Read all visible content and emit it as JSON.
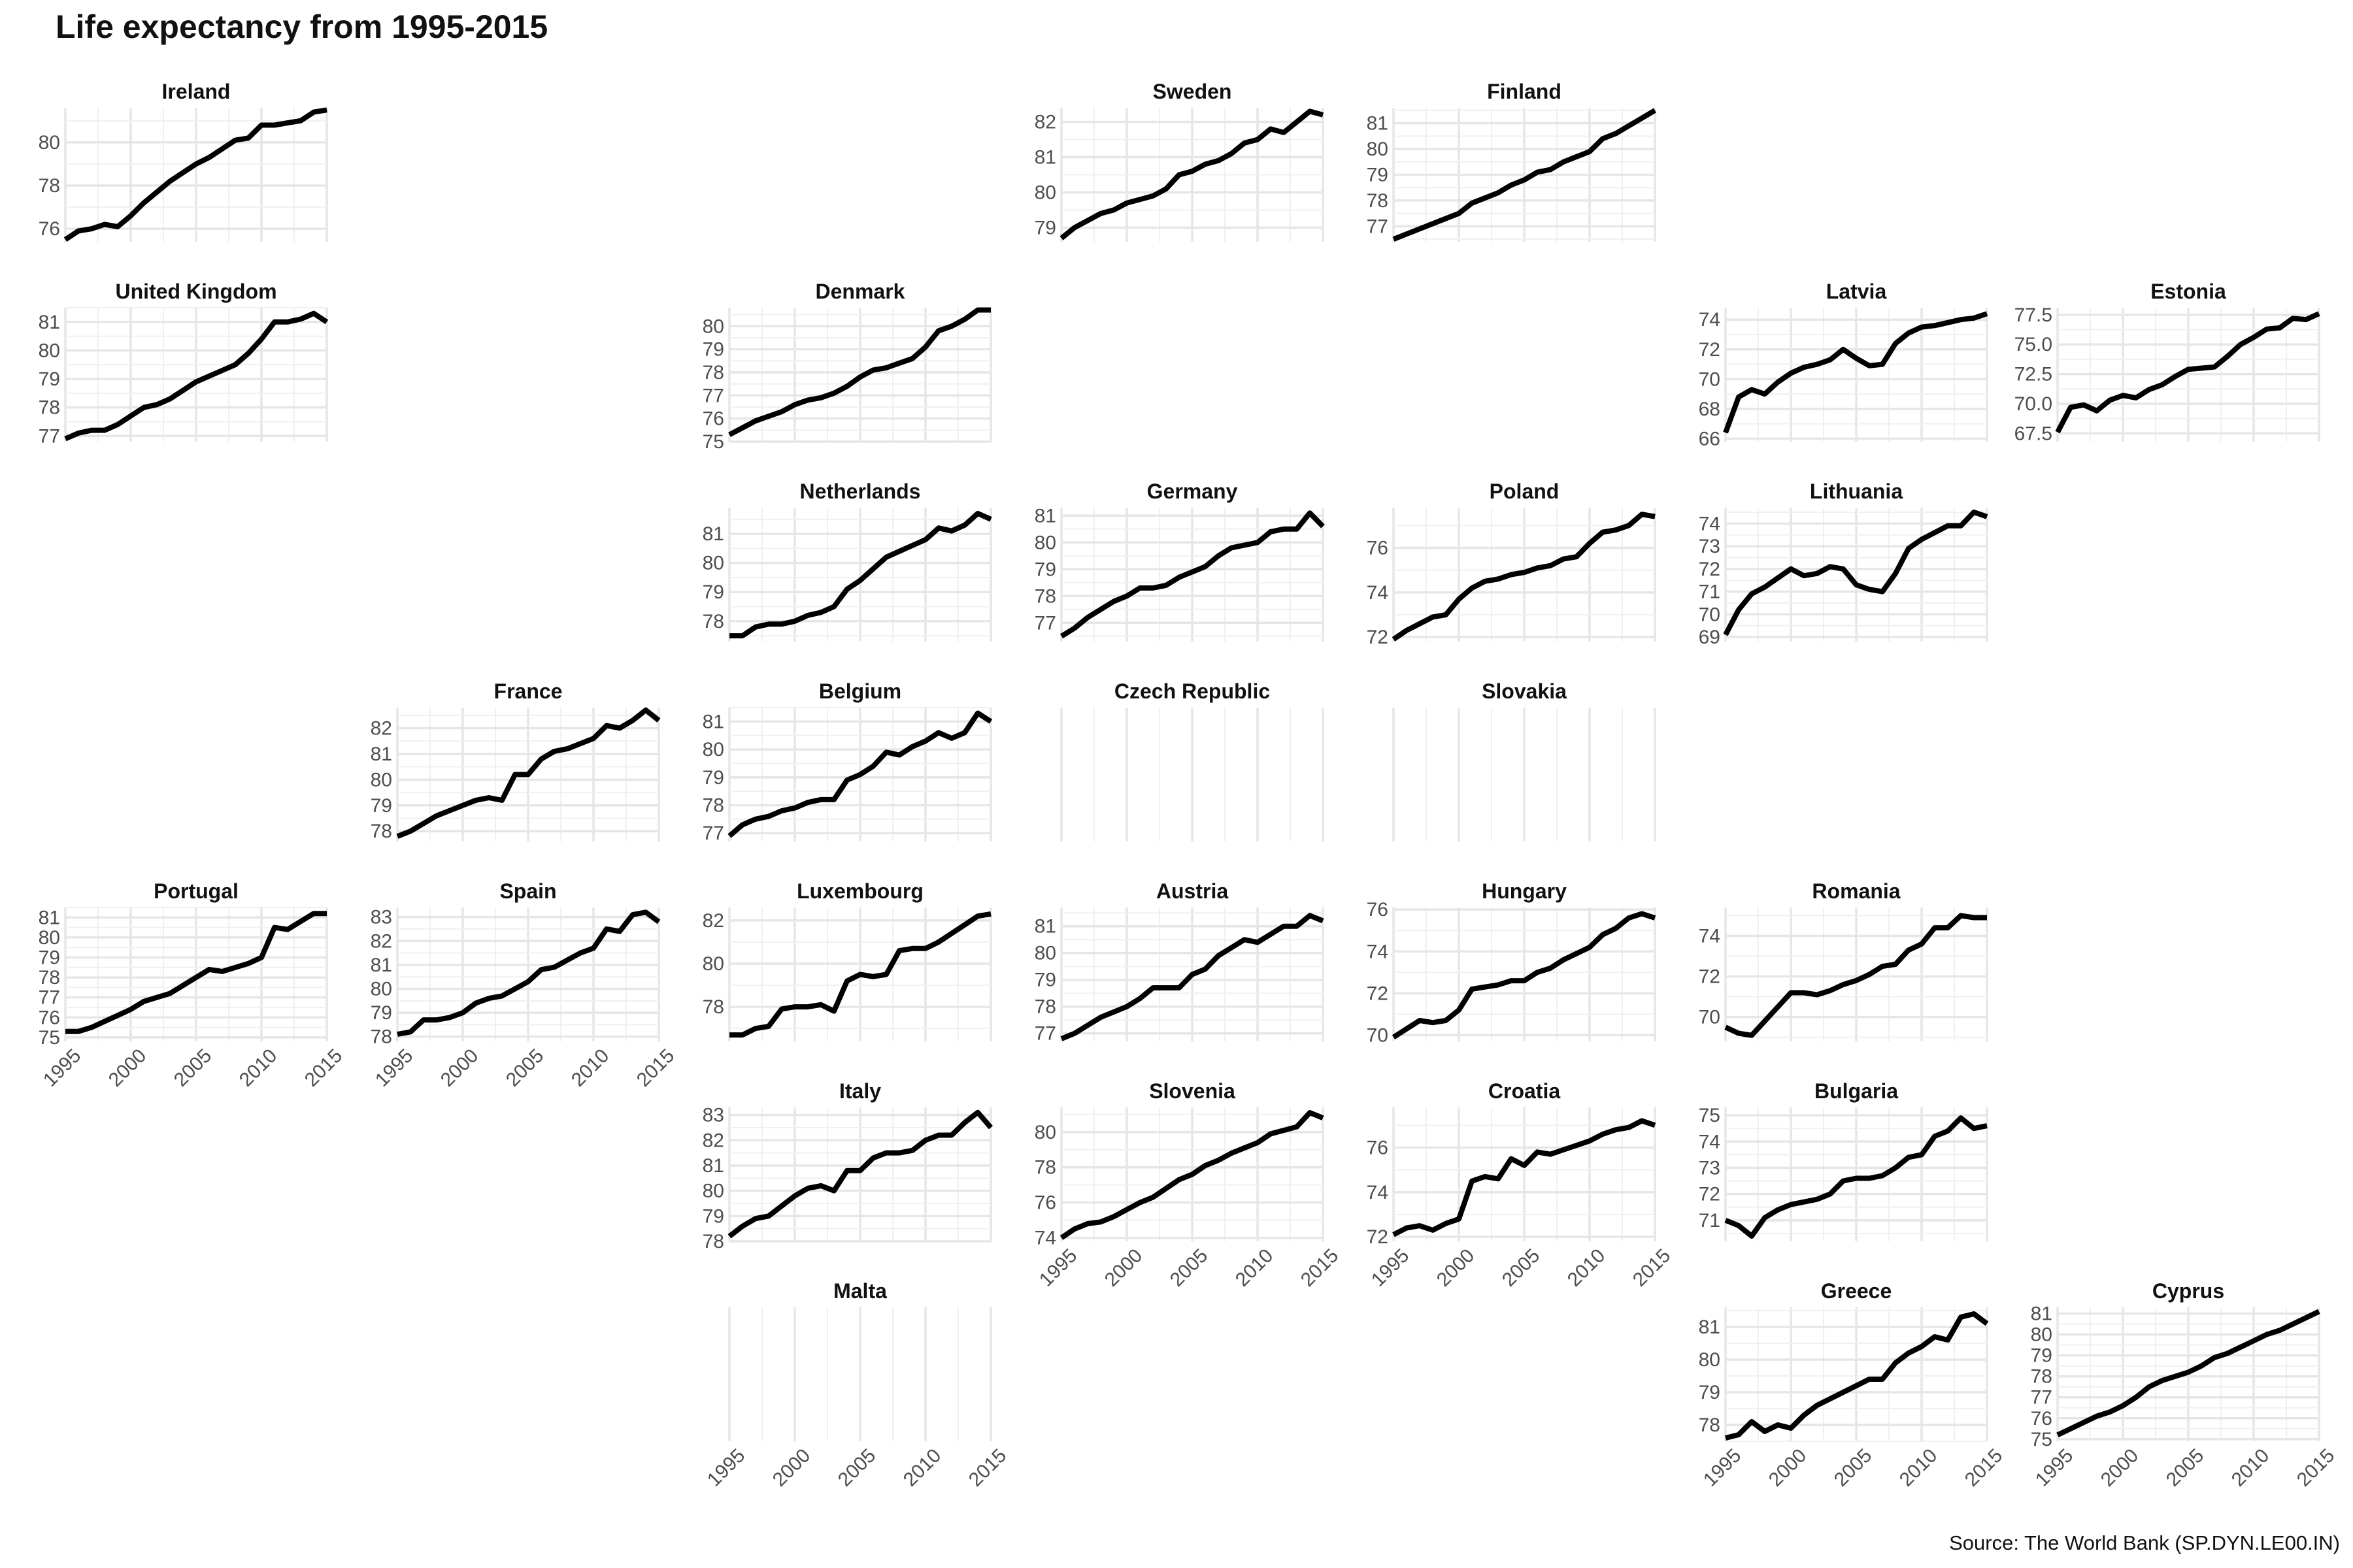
{
  "title": "Life expectancy from 1995-2015",
  "source": "Source: The World Bank (SP.DYN.LE00.IN)",
  "chart_data": {
    "type": "line",
    "layout": "facet-grid",
    "grid": true,
    "xlim": [
      1995,
      2015
    ],
    "x_ticks": [
      1995,
      2000,
      2005,
      2010,
      2015
    ],
    "x": [
      1995,
      1996,
      1997,
      1998,
      1999,
      2000,
      2001,
      2002,
      2003,
      2004,
      2005,
      2006,
      2007,
      2008,
      2009,
      2010,
      2011,
      2012,
      2013,
      2014,
      2015
    ],
    "panels": [
      {
        "name": "Ireland",
        "row": 0,
        "col": 0,
        "yticks": [
          76,
          78,
          80
        ],
        "ylim": [
          75.4,
          81.6
        ],
        "x_axis": false,
        "values": [
          75.5,
          75.9,
          76.0,
          76.2,
          76.1,
          76.6,
          77.2,
          77.7,
          78.2,
          78.6,
          79.0,
          79.3,
          79.7,
          80.1,
          80.2,
          80.8,
          80.8,
          80.9,
          81.0,
          81.4,
          81.5
        ]
      },
      {
        "name": "Sweden",
        "row": 0,
        "col": 3,
        "yticks": [
          79,
          80,
          81,
          82
        ],
        "ylim": [
          78.6,
          82.4
        ],
        "x_axis": false,
        "values": [
          78.7,
          79.0,
          79.2,
          79.4,
          79.5,
          79.7,
          79.8,
          79.9,
          80.1,
          80.5,
          80.6,
          80.8,
          80.9,
          81.1,
          81.4,
          81.5,
          81.8,
          81.7,
          82.0,
          82.3,
          82.2
        ]
      },
      {
        "name": "Finland",
        "row": 0,
        "col": 4,
        "yticks": [
          77,
          78,
          79,
          80,
          81
        ],
        "ylim": [
          76.4,
          81.6
        ],
        "x_axis": false,
        "values": [
          76.5,
          76.7,
          76.9,
          77.1,
          77.3,
          77.5,
          77.9,
          78.1,
          78.3,
          78.6,
          78.8,
          79.1,
          79.2,
          79.5,
          79.7,
          79.9,
          80.4,
          80.6,
          80.9,
          81.2,
          81.5
        ]
      },
      {
        "name": "United Kingdom",
        "row": 1,
        "col": 0,
        "yticks": [
          77,
          78,
          79,
          80,
          81
        ],
        "ylim": [
          76.8,
          81.5
        ],
        "x_axis": false,
        "values": [
          76.9,
          77.1,
          77.2,
          77.2,
          77.4,
          77.7,
          78.0,
          78.1,
          78.3,
          78.6,
          78.9,
          79.1,
          79.3,
          79.5,
          79.9,
          80.4,
          81.0,
          81.0,
          81.1,
          81.3,
          81.0
        ]
      },
      {
        "name": "Denmark",
        "row": 1,
        "col": 2,
        "yticks": [
          75,
          76,
          77,
          78,
          79,
          80
        ],
        "ylim": [
          75.0,
          80.8
        ],
        "x_axis": false,
        "values": [
          75.3,
          75.6,
          75.9,
          76.1,
          76.3,
          76.6,
          76.8,
          76.9,
          77.1,
          77.4,
          77.8,
          78.1,
          78.2,
          78.4,
          78.6,
          79.1,
          79.8,
          80.0,
          80.3,
          80.7,
          80.7
        ]
      },
      {
        "name": "Latvia",
        "row": 1,
        "col": 5,
        "yticks": [
          66,
          68,
          70,
          72,
          74
        ],
        "ylim": [
          65.8,
          74.8
        ],
        "x_axis": false,
        "values": [
          66.4,
          68.8,
          69.3,
          69.0,
          69.8,
          70.4,
          70.8,
          71.0,
          71.3,
          72.0,
          71.4,
          70.9,
          71.0,
          72.4,
          73.1,
          73.5,
          73.6,
          73.8,
          74.0,
          74.1,
          74.4
        ]
      },
      {
        "name": "Estonia",
        "row": 1,
        "col": 6,
        "yticks": [
          67.5,
          70.0,
          72.5,
          75.0,
          77.5
        ],
        "ylim": [
          66.8,
          78.1
        ],
        "x_axis": false,
        "values": [
          67.6,
          69.7,
          69.9,
          69.4,
          70.3,
          70.7,
          70.5,
          71.2,
          71.6,
          72.3,
          72.9,
          73.0,
          73.1,
          74.0,
          75.0,
          75.6,
          76.3,
          76.4,
          77.2,
          77.1,
          77.6
        ]
      },
      {
        "name": "Netherlands",
        "row": 2,
        "col": 2,
        "yticks": [
          78,
          79,
          80,
          81
        ],
        "ylim": [
          77.3,
          81.9
        ],
        "x_axis": false,
        "values": [
          77.5,
          77.5,
          77.8,
          77.9,
          77.9,
          78.0,
          78.2,
          78.3,
          78.5,
          79.1,
          79.4,
          79.8,
          80.2,
          80.4,
          80.6,
          80.8,
          81.2,
          81.1,
          81.3,
          81.7,
          81.5
        ]
      },
      {
        "name": "Germany",
        "row": 2,
        "col": 3,
        "yticks": [
          77,
          78,
          79,
          80,
          81
        ],
        "ylim": [
          76.3,
          81.3
        ],
        "x_axis": false,
        "values": [
          76.5,
          76.8,
          77.2,
          77.5,
          77.8,
          78.0,
          78.3,
          78.3,
          78.4,
          78.7,
          78.9,
          79.1,
          79.5,
          79.8,
          79.9,
          80.0,
          80.4,
          80.5,
          80.5,
          81.1,
          80.6
        ]
      },
      {
        "name": "Poland",
        "row": 2,
        "col": 4,
        "yticks": [
          72,
          74,
          76
        ],
        "ylim": [
          71.8,
          77.8
        ],
        "x_axis": false,
        "values": [
          71.9,
          72.3,
          72.6,
          72.9,
          73.0,
          73.7,
          74.2,
          74.5,
          74.6,
          74.8,
          74.9,
          75.1,
          75.2,
          75.5,
          75.6,
          76.2,
          76.7,
          76.8,
          77.0,
          77.5,
          77.4
        ]
      },
      {
        "name": "Lithuania",
        "row": 2,
        "col": 5,
        "yticks": [
          69,
          70,
          71,
          72,
          73,
          74
        ],
        "ylim": [
          68.8,
          74.7
        ],
        "x_axis": false,
        "values": [
          69.1,
          70.2,
          70.9,
          71.2,
          71.6,
          72.0,
          71.7,
          71.8,
          72.1,
          72.0,
          71.3,
          71.1,
          71.0,
          71.8,
          72.9,
          73.3,
          73.6,
          73.9,
          73.9,
          74.5,
          74.3
        ]
      },
      {
        "name": "France",
        "row": 3,
        "col": 1,
        "yticks": [
          78,
          79,
          80,
          81,
          82
        ],
        "ylim": [
          77.6,
          82.8
        ],
        "x_axis": false,
        "values": [
          77.8,
          78.0,
          78.3,
          78.6,
          78.8,
          79.0,
          79.2,
          79.3,
          79.2,
          80.2,
          80.2,
          80.8,
          81.1,
          81.2,
          81.4,
          81.6,
          82.1,
          82.0,
          82.3,
          82.7,
          82.3
        ]
      },
      {
        "name": "Belgium",
        "row": 3,
        "col": 2,
        "yticks": [
          77,
          78,
          79,
          80,
          81
        ],
        "ylim": [
          76.7,
          81.5
        ],
        "x_axis": false,
        "values": [
          76.9,
          77.3,
          77.5,
          77.6,
          77.8,
          77.9,
          78.1,
          78.2,
          78.2,
          78.9,
          79.1,
          79.4,
          79.9,
          79.8,
          80.1,
          80.3,
          80.6,
          80.4,
          80.6,
          81.3,
          81.0
        ]
      },
      {
        "name": "Czech Republic",
        "row": 3,
        "col": 3,
        "empty": true,
        "yticks": [],
        "ylim": [
          0,
          1
        ],
        "x_axis": false,
        "values": []
      },
      {
        "name": "Slovakia",
        "row": 3,
        "col": 4,
        "empty": true,
        "yticks": [],
        "ylim": [
          0,
          1
        ],
        "x_axis": false,
        "values": []
      },
      {
        "name": "Portugal",
        "row": 4,
        "col": 0,
        "yticks": [
          75,
          76,
          77,
          78,
          79,
          80,
          81
        ],
        "ylim": [
          74.8,
          81.5
        ],
        "x_axis": true,
        "values": [
          75.3,
          75.3,
          75.5,
          75.8,
          76.1,
          76.4,
          76.8,
          77.0,
          77.2,
          77.6,
          78.0,
          78.4,
          78.3,
          78.5,
          78.7,
          79.0,
          80.5,
          80.4,
          80.8,
          81.2,
          81.2
        ]
      },
      {
        "name": "Spain",
        "row": 4,
        "col": 1,
        "yticks": [
          78,
          79,
          80,
          81,
          82,
          83
        ],
        "ylim": [
          77.8,
          83.4
        ],
        "x_axis": true,
        "values": [
          78.1,
          78.2,
          78.7,
          78.7,
          78.8,
          79.0,
          79.4,
          79.6,
          79.7,
          80.0,
          80.3,
          80.8,
          80.9,
          81.2,
          81.5,
          81.7,
          82.5,
          82.4,
          83.1,
          83.2,
          82.8
        ]
      },
      {
        "name": "Luxembourg",
        "row": 4,
        "col": 2,
        "yticks": [
          78,
          80,
          82
        ],
        "ylim": [
          76.4,
          82.6
        ],
        "x_axis": false,
        "values": [
          76.7,
          76.7,
          77.0,
          77.1,
          77.9,
          78.0,
          78.0,
          78.1,
          77.8,
          79.2,
          79.5,
          79.4,
          79.5,
          80.6,
          80.7,
          80.7,
          81.0,
          81.4,
          81.8,
          82.2,
          82.3
        ]
      },
      {
        "name": "Austria",
        "row": 4,
        "col": 3,
        "yticks": [
          77,
          78,
          79,
          80,
          81
        ],
        "ylim": [
          76.7,
          81.7
        ],
        "x_axis": false,
        "values": [
          76.8,
          77.0,
          77.3,
          77.6,
          77.8,
          78.0,
          78.3,
          78.7,
          78.7,
          78.7,
          79.2,
          79.4,
          79.9,
          80.2,
          80.5,
          80.4,
          80.7,
          81.0,
          81.0,
          81.4,
          81.2
        ]
      },
      {
        "name": "Hungary",
        "row": 4,
        "col": 4,
        "yticks": [
          70,
          72,
          74,
          76
        ],
        "ylim": [
          69.7,
          76.1
        ],
        "x_axis": false,
        "values": [
          69.9,
          70.3,
          70.7,
          70.6,
          70.7,
          71.2,
          72.2,
          72.3,
          72.4,
          72.6,
          72.6,
          73.0,
          73.2,
          73.6,
          73.9,
          74.2,
          74.8,
          75.1,
          75.6,
          75.8,
          75.6
        ]
      },
      {
        "name": "Romania",
        "row": 4,
        "col": 5,
        "yticks": [
          70,
          72,
          74
        ],
        "ylim": [
          68.8,
          75.4
        ],
        "x_axis": false,
        "values": [
          69.5,
          69.2,
          69.1,
          69.8,
          70.5,
          71.2,
          71.2,
          71.1,
          71.3,
          71.6,
          71.8,
          72.1,
          72.5,
          72.6,
          73.3,
          73.6,
          74.4,
          74.4,
          75.0,
          74.9,
          74.9
        ]
      },
      {
        "name": "Italy",
        "row": 5,
        "col": 2,
        "yticks": [
          78,
          79,
          80,
          81,
          82,
          83
        ],
        "ylim": [
          78.0,
          83.3
        ],
        "x_axis": false,
        "values": [
          78.2,
          78.6,
          78.9,
          79.0,
          79.4,
          79.8,
          80.1,
          80.2,
          80.0,
          80.8,
          80.8,
          81.3,
          81.5,
          81.5,
          81.6,
          82.0,
          82.2,
          82.2,
          82.7,
          83.1,
          82.5
        ]
      },
      {
        "name": "Slovenia",
        "row": 5,
        "col": 3,
        "yticks": [
          74,
          76,
          78,
          80
        ],
        "ylim": [
          73.8,
          81.4
        ],
        "x_axis": true,
        "values": [
          74.0,
          74.5,
          74.8,
          74.9,
          75.2,
          75.6,
          76.0,
          76.3,
          76.8,
          77.3,
          77.6,
          78.1,
          78.4,
          78.8,
          79.1,
          79.4,
          79.9,
          80.1,
          80.3,
          81.1,
          80.8
        ]
      },
      {
        "name": "Croatia",
        "row": 5,
        "col": 4,
        "yticks": [
          72,
          74,
          76
        ],
        "ylim": [
          71.8,
          77.8
        ],
        "x_axis": true,
        "values": [
          72.1,
          72.4,
          72.5,
          72.3,
          72.6,
          72.8,
          74.5,
          74.7,
          74.6,
          75.5,
          75.2,
          75.8,
          75.7,
          75.9,
          76.1,
          76.3,
          76.6,
          76.8,
          76.9,
          77.2,
          77.0
        ]
      },
      {
        "name": "Bulgaria",
        "row": 5,
        "col": 5,
        "yticks": [
          71,
          72,
          73,
          74,
          75
        ],
        "ylim": [
          70.2,
          75.3
        ],
        "x_axis": false,
        "values": [
          71.0,
          70.8,
          70.4,
          71.1,
          71.4,
          71.6,
          71.7,
          71.8,
          72.0,
          72.5,
          72.6,
          72.6,
          72.7,
          73.0,
          73.4,
          73.5,
          74.2,
          74.4,
          74.9,
          74.5,
          74.6
        ]
      },
      {
        "name": "Malta",
        "row": 6,
        "col": 2,
        "empty": true,
        "yticks": [],
        "ylim": [
          0,
          1
        ],
        "x_axis": true,
        "values": []
      },
      {
        "name": "Greece",
        "row": 6,
        "col": 5,
        "yticks": [
          78,
          79,
          80,
          81
        ],
        "ylim": [
          77.5,
          81.6
        ],
        "x_axis": true,
        "values": [
          77.6,
          77.7,
          78.1,
          77.8,
          78.0,
          77.9,
          78.3,
          78.6,
          78.8,
          79.0,
          79.2,
          79.4,
          79.4,
          79.9,
          80.2,
          80.4,
          80.7,
          80.6,
          81.3,
          81.4,
          81.1
        ]
      },
      {
        "name": "Cyprus",
        "row": 6,
        "col": 6,
        "yticks": [
          75,
          76,
          77,
          78,
          79,
          80,
          81
        ],
        "ylim": [
          74.9,
          81.3
        ],
        "x_axis": true,
        "values": [
          75.2,
          75.5,
          75.8,
          76.1,
          76.3,
          76.6,
          77.0,
          77.5,
          77.8,
          78.0,
          78.2,
          78.5,
          78.9,
          79.1,
          79.4,
          79.7,
          80.0,
          80.2,
          80.5,
          80.8,
          81.1
        ]
      }
    ]
  }
}
